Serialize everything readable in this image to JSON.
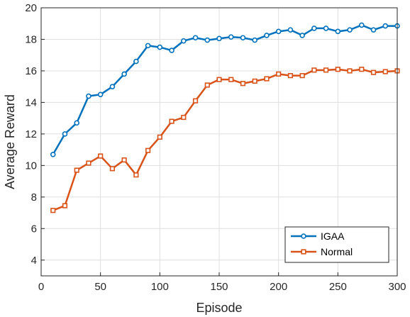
{
  "chart_data": {
    "type": "line",
    "xlabel": "Episode",
    "ylabel": "Average Reward",
    "xlim": [
      0,
      300
    ],
    "ylim": [
      3,
      20
    ],
    "xticks": [
      0,
      50,
      100,
      150,
      200,
      250,
      300
    ],
    "yticks": [
      4,
      6,
      8,
      10,
      12,
      14,
      16,
      18,
      20
    ],
    "grid": true,
    "legend_position": "bottom-right",
    "x": [
      10,
      20,
      30,
      40,
      50,
      60,
      70,
      80,
      90,
      100,
      110,
      120,
      130,
      140,
      150,
      160,
      170,
      180,
      190,
      200,
      210,
      220,
      230,
      240,
      250,
      260,
      270,
      280,
      290,
      300
    ],
    "series": [
      {
        "name": "IGAA",
        "color": "#0072bd",
        "marker": "circle",
        "values": [
          10.7,
          12.0,
          12.7,
          14.4,
          14.5,
          15.0,
          15.8,
          16.6,
          17.6,
          17.5,
          17.3,
          17.9,
          18.1,
          17.95,
          18.05,
          18.15,
          18.1,
          17.95,
          18.25,
          18.5,
          18.6,
          18.25,
          18.7,
          18.7,
          18.5,
          18.6,
          18.9,
          18.6,
          18.85,
          18.85
        ]
      },
      {
        "name": "Normal",
        "color": "#d95319",
        "marker": "square",
        "values": [
          7.15,
          7.45,
          9.7,
          10.15,
          10.6,
          9.8,
          10.35,
          9.4,
          10.95,
          11.8,
          12.8,
          13.05,
          14.1,
          15.1,
          15.45,
          15.45,
          15.2,
          15.35,
          15.5,
          15.8,
          15.7,
          15.7,
          16.05,
          16.05,
          16.1,
          16.0,
          16.1,
          15.9,
          15.95,
          16.0
        ]
      }
    ]
  }
}
